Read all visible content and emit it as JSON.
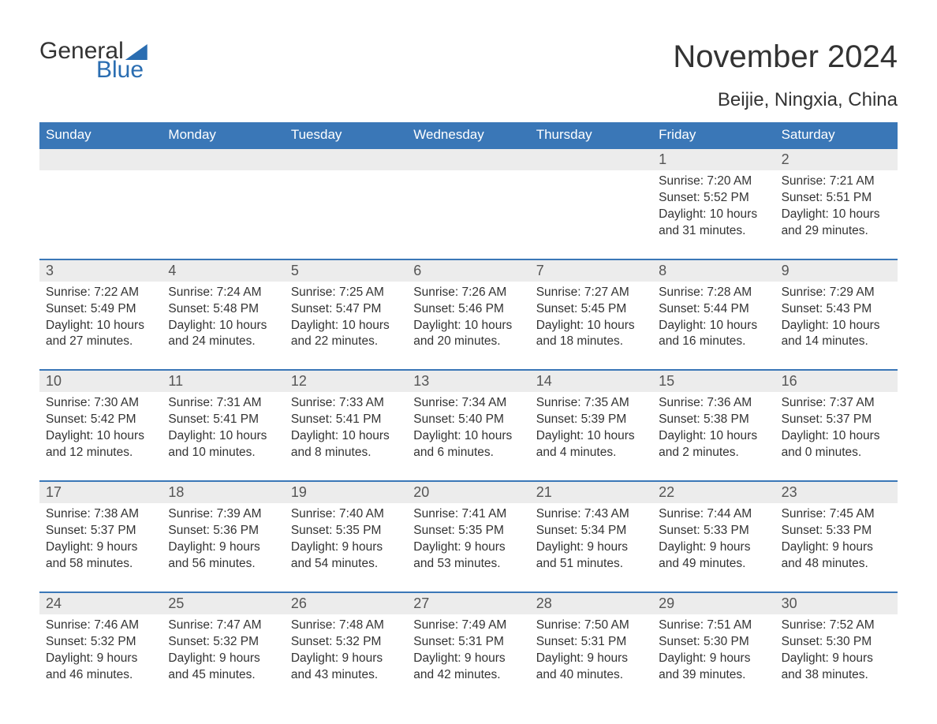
{
  "logo": {
    "word1": "General",
    "word2": "Blue",
    "accent_color": "#2a6db1"
  },
  "title": "November 2024",
  "location": "Beijie, Ningxia, China",
  "colors": {
    "header_bg": "#3a77b7",
    "header_text": "#ffffff",
    "band_bg": "#ececec",
    "body_text": "#333333",
    "rule": "#3a77b7",
    "page_bg": "#ffffff"
  },
  "weekdays": [
    "Sunday",
    "Monday",
    "Tuesday",
    "Wednesday",
    "Thursday",
    "Friday",
    "Saturday"
  ],
  "labels": {
    "sunrise": "Sunrise:",
    "sunset": "Sunset:",
    "daylight": "Daylight:"
  },
  "weeks": [
    [
      null,
      null,
      null,
      null,
      null,
      {
        "n": 1,
        "sunrise": "7:20 AM",
        "sunset": "5:52 PM",
        "daylight": "10 hours and 31 minutes."
      },
      {
        "n": 2,
        "sunrise": "7:21 AM",
        "sunset": "5:51 PM",
        "daylight": "10 hours and 29 minutes."
      }
    ],
    [
      {
        "n": 3,
        "sunrise": "7:22 AM",
        "sunset": "5:49 PM",
        "daylight": "10 hours and 27 minutes."
      },
      {
        "n": 4,
        "sunrise": "7:24 AM",
        "sunset": "5:48 PM",
        "daylight": "10 hours and 24 minutes."
      },
      {
        "n": 5,
        "sunrise": "7:25 AM",
        "sunset": "5:47 PM",
        "daylight": "10 hours and 22 minutes."
      },
      {
        "n": 6,
        "sunrise": "7:26 AM",
        "sunset": "5:46 PM",
        "daylight": "10 hours and 20 minutes."
      },
      {
        "n": 7,
        "sunrise": "7:27 AM",
        "sunset": "5:45 PM",
        "daylight": "10 hours and 18 minutes."
      },
      {
        "n": 8,
        "sunrise": "7:28 AM",
        "sunset": "5:44 PM",
        "daylight": "10 hours and 16 minutes."
      },
      {
        "n": 9,
        "sunrise": "7:29 AM",
        "sunset": "5:43 PM",
        "daylight": "10 hours and 14 minutes."
      }
    ],
    [
      {
        "n": 10,
        "sunrise": "7:30 AM",
        "sunset": "5:42 PM",
        "daylight": "10 hours and 12 minutes."
      },
      {
        "n": 11,
        "sunrise": "7:31 AM",
        "sunset": "5:41 PM",
        "daylight": "10 hours and 10 minutes."
      },
      {
        "n": 12,
        "sunrise": "7:33 AM",
        "sunset": "5:41 PM",
        "daylight": "10 hours and 8 minutes."
      },
      {
        "n": 13,
        "sunrise": "7:34 AM",
        "sunset": "5:40 PM",
        "daylight": "10 hours and 6 minutes."
      },
      {
        "n": 14,
        "sunrise": "7:35 AM",
        "sunset": "5:39 PM",
        "daylight": "10 hours and 4 minutes."
      },
      {
        "n": 15,
        "sunrise": "7:36 AM",
        "sunset": "5:38 PM",
        "daylight": "10 hours and 2 minutes."
      },
      {
        "n": 16,
        "sunrise": "7:37 AM",
        "sunset": "5:37 PM",
        "daylight": "10 hours and 0 minutes."
      }
    ],
    [
      {
        "n": 17,
        "sunrise": "7:38 AM",
        "sunset": "5:37 PM",
        "daylight": "9 hours and 58 minutes."
      },
      {
        "n": 18,
        "sunrise": "7:39 AM",
        "sunset": "5:36 PM",
        "daylight": "9 hours and 56 minutes."
      },
      {
        "n": 19,
        "sunrise": "7:40 AM",
        "sunset": "5:35 PM",
        "daylight": "9 hours and 54 minutes."
      },
      {
        "n": 20,
        "sunrise": "7:41 AM",
        "sunset": "5:35 PM",
        "daylight": "9 hours and 53 minutes."
      },
      {
        "n": 21,
        "sunrise": "7:43 AM",
        "sunset": "5:34 PM",
        "daylight": "9 hours and 51 minutes."
      },
      {
        "n": 22,
        "sunrise": "7:44 AM",
        "sunset": "5:33 PM",
        "daylight": "9 hours and 49 minutes."
      },
      {
        "n": 23,
        "sunrise": "7:45 AM",
        "sunset": "5:33 PM",
        "daylight": "9 hours and 48 minutes."
      }
    ],
    [
      {
        "n": 24,
        "sunrise": "7:46 AM",
        "sunset": "5:32 PM",
        "daylight": "9 hours and 46 minutes."
      },
      {
        "n": 25,
        "sunrise": "7:47 AM",
        "sunset": "5:32 PM",
        "daylight": "9 hours and 45 minutes."
      },
      {
        "n": 26,
        "sunrise": "7:48 AM",
        "sunset": "5:32 PM",
        "daylight": "9 hours and 43 minutes."
      },
      {
        "n": 27,
        "sunrise": "7:49 AM",
        "sunset": "5:31 PM",
        "daylight": "9 hours and 42 minutes."
      },
      {
        "n": 28,
        "sunrise": "7:50 AM",
        "sunset": "5:31 PM",
        "daylight": "9 hours and 40 minutes."
      },
      {
        "n": 29,
        "sunrise": "7:51 AM",
        "sunset": "5:30 PM",
        "daylight": "9 hours and 39 minutes."
      },
      {
        "n": 30,
        "sunrise": "7:52 AM",
        "sunset": "5:30 PM",
        "daylight": "9 hours and 38 minutes."
      }
    ]
  ]
}
